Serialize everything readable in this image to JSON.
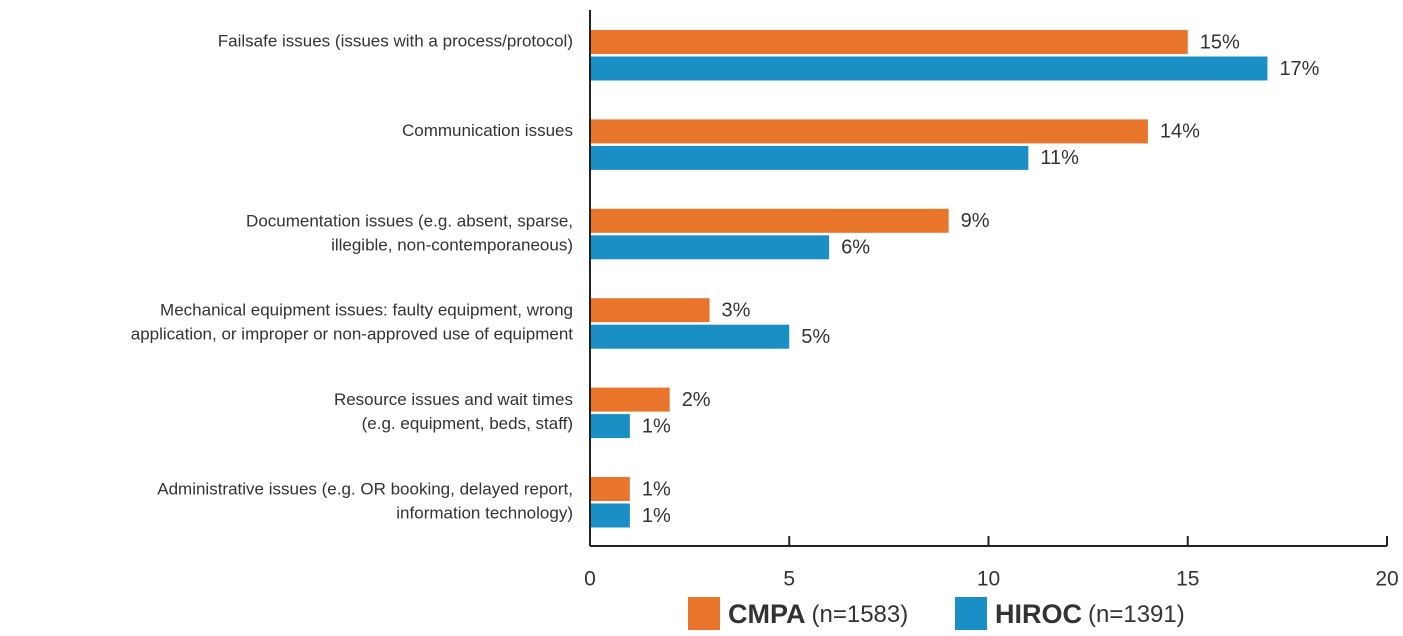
{
  "chart_data": {
    "type": "bar",
    "orientation": "horizontal",
    "categories": [
      [
        "Failsafe issues (issues with a process/protocol)"
      ],
      [
        "Communication issues"
      ],
      [
        "Documentation issues (e.g. absent, sparse,",
        "illegible, non-contemporaneous)"
      ],
      [
        "Mechanical equipment issues: faulty equipment, wrong",
        "application, or improper or non-approved use of equipment"
      ],
      [
        "Resource issues and wait times",
        "(e.g. equipment, beds, staff)"
      ],
      [
        "Administrative issues (e.g. OR booking, delayed report,",
        "information technology)"
      ]
    ],
    "series": [
      {
        "name": "CMPA",
        "note": "(n=1583)",
        "color": "#e8752a",
        "values": [
          15,
          14,
          9,
          3,
          2,
          1
        ],
        "value_labels": [
          "15%",
          "14%",
          "9%",
          "3%",
          "2%",
          "1%"
        ]
      },
      {
        "name": "HIROC",
        "note": "(n=1391)",
        "color": "#1a8fc6",
        "values": [
          17,
          11,
          6,
          5,
          1,
          1
        ],
        "value_labels": [
          "17%",
          "11%",
          "6%",
          "5%",
          "1%",
          "1%"
        ]
      }
    ],
    "xlim": [
      0,
      20
    ],
    "xticks": [
      0,
      5,
      10,
      15,
      20
    ]
  }
}
